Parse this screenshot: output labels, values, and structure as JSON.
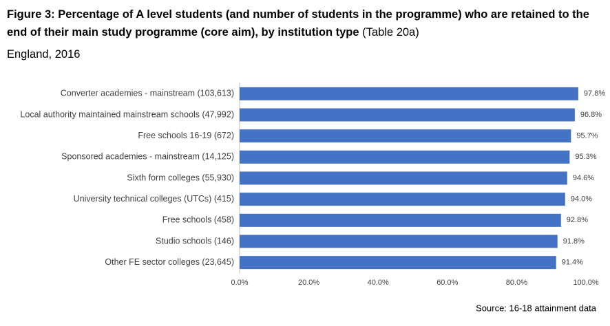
{
  "chart_data": {
    "type": "bar",
    "orientation": "horizontal",
    "title": "Figure 3: Percentage of A level students (and number of students in the programme) who are retained to the end of their main study programme (core aim), by institution type",
    "title_suffix": "(Table 20a)",
    "subtitle": "England, 2016",
    "source": "Source: 16-18 attainment data",
    "categories": [
      "Converter academies - mainstream (103,613)",
      "Local authority maintained mainstream schools (47,992)",
      "Free schools 16-19 (672)",
      "Sponsored academies - mainstream (14,125)",
      "Sixth form colleges (55,930)",
      "University technical colleges (UTCs) (415)",
      "Free schools (458)",
      "Studio schools (146)",
      "Other FE sector colleges (23,645)"
    ],
    "values": [
      97.8,
      96.8,
      95.7,
      95.3,
      94.6,
      94.0,
      92.8,
      91.8,
      91.4
    ],
    "value_labels": [
      "97.8%",
      "96.8%",
      "95.7%",
      "95.3%",
      "94.6%",
      "94.0%",
      "92.8%",
      "91.8%",
      "91.4%"
    ],
    "color": "#4472c4",
    "xlim": [
      0,
      100
    ],
    "xticks": [
      {
        "value": 0,
        "label": "0.0%"
      },
      {
        "value": 20,
        "label": "20.0%"
      },
      {
        "value": 40,
        "label": "40.0%"
      },
      {
        "value": 60,
        "label": "60.0%"
      },
      {
        "value": 80,
        "label": "80.0%"
      },
      {
        "value": 100,
        "label": "100.0%"
      }
    ],
    "grid": false
  }
}
